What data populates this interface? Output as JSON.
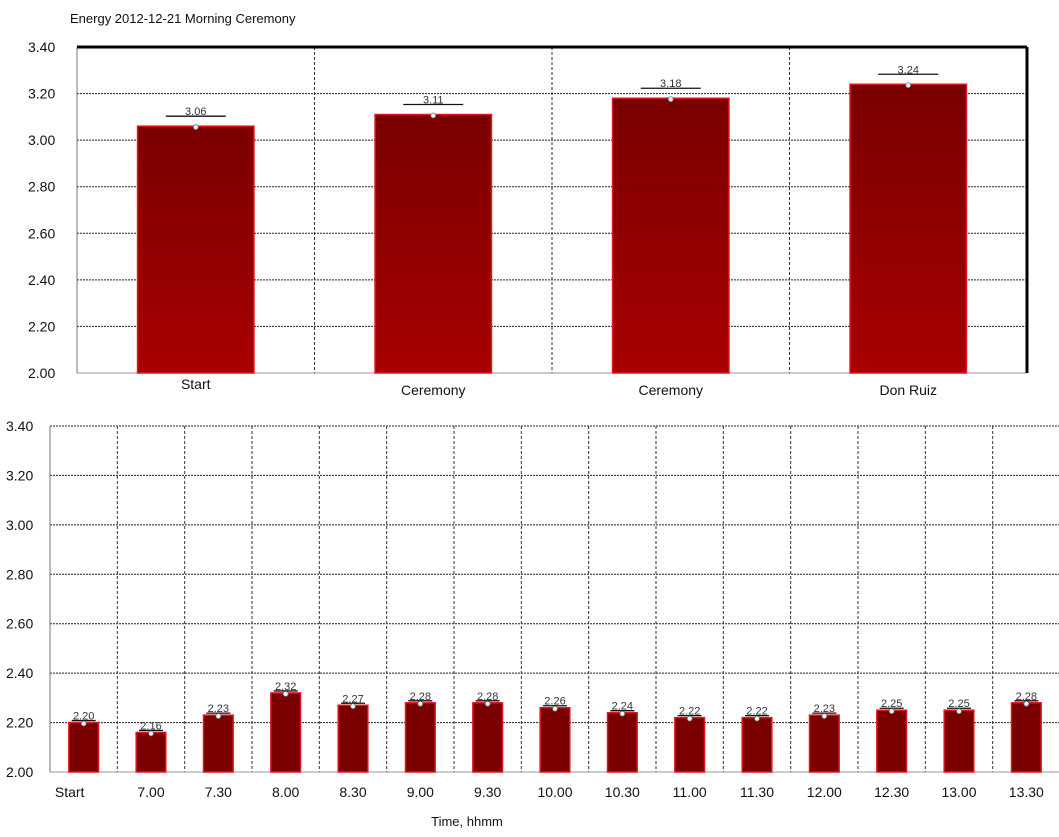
{
  "chart_data": [
    {
      "type": "bar",
      "title": "Energy 2012-12-21 Morning Ceremony",
      "xlabel": "",
      "ylabel": "",
      "ylim": [
        2.0,
        3.4
      ],
      "yticks": [
        "2.00",
        "2.20",
        "2.40",
        "2.60",
        "2.80",
        "3.00",
        "3.20",
        "3.40"
      ],
      "categories": [
        "Start",
        "Ceremony",
        "Ceremony",
        "Don Ruiz"
      ],
      "values": [
        3.06,
        3.11,
        3.18,
        3.24
      ],
      "data_labels": [
        "3.06",
        "3.11",
        "3.18",
        "3.24"
      ],
      "grid": true,
      "bar_color": "#8b0000",
      "bar_edge_color": "#e0141e"
    },
    {
      "type": "bar",
      "title": "",
      "xlabel": "Time, hhmm",
      "ylabel": "",
      "ylim": [
        2.0,
        3.4
      ],
      "yticks": [
        "2.00",
        "2.20",
        "2.40",
        "2.60",
        "2.80",
        "3.00",
        "3.20",
        "3.40"
      ],
      "categories": [
        "Start",
        "7.00",
        "7.30",
        "8.00",
        "8.30",
        "9.00",
        "9.30",
        "10.00",
        "10.30",
        "11.00",
        "11.30",
        "12.00",
        "12.30",
        "13.00",
        "13.30"
      ],
      "values": [
        2.2,
        2.16,
        2.23,
        2.32,
        2.27,
        2.28,
        2.28,
        2.26,
        2.24,
        2.22,
        2.22,
        2.23,
        2.25,
        2.25,
        2.28
      ],
      "data_labels": [
        "2.20",
        "2.16",
        "2.23",
        "2.32",
        "2.27",
        "2.28",
        "2.28",
        "2.26",
        "2.24",
        "2.22",
        "2.22",
        "2.23",
        "2.25",
        "2.25",
        "2.28"
      ],
      "grid": true,
      "bar_color": "#7a0000",
      "bar_edge_color": "#e0141e"
    }
  ]
}
